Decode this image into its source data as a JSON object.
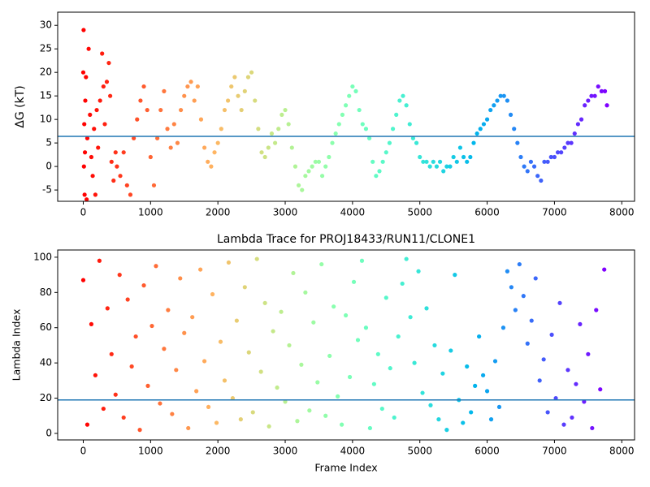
{
  "chart_data": [
    {
      "type": "scatter",
      "ylabel": "ΔG (kT)",
      "colormap": "rainbow_r",
      "hline": 6.4,
      "hline_color": "#1f77b4",
      "xlim": [
        -380,
        8190
      ],
      "ylim": [
        -7.4,
        32.8
      ],
      "xticks": [
        0,
        1000,
        2000,
        3000,
        4000,
        5000,
        6000,
        7000,
        8000
      ],
      "yticks": [
        -5,
        0,
        5,
        10,
        15,
        20,
        25,
        30
      ],
      "x": [
        0,
        5,
        10,
        15,
        20,
        25,
        30,
        40,
        50,
        60,
        80,
        100,
        120,
        140,
        160,
        180,
        200,
        220,
        250,
        280,
        300,
        320,
        350,
        380,
        400,
        420,
        450,
        480,
        500,
        550,
        600,
        650,
        700,
        750,
        800,
        850,
        900,
        950,
        1000,
        1050,
        1100,
        1150,
        1200,
        1250,
        1300,
        1350,
        1400,
        1450,
        1500,
        1550,
        1600,
        1650,
        1700,
        1750,
        1800,
        1850,
        1900,
        1950,
        2000,
        2050,
        2100,
        2150,
        2200,
        2250,
        2300,
        2350,
        2400,
        2450,
        2500,
        2550,
        2600,
        2650,
        2700,
        2750,
        2800,
        2850,
        2900,
        2950,
        3000,
        3050,
        3100,
        3150,
        3200,
        3250,
        3300,
        3350,
        3400,
        3450,
        3500,
        3550,
        3600,
        3650,
        3700,
        3750,
        3800,
        3850,
        3900,
        3950,
        4000,
        4050,
        4100,
        4150,
        4200,
        4250,
        4300,
        4350,
        4400,
        4450,
        4500,
        4550,
        4600,
        4650,
        4700,
        4750,
        4800,
        4850,
        4900,
        4950,
        5000,
        5050,
        5100,
        5150,
        5200,
        5250,
        5300,
        5350,
        5400,
        5450,
        5500,
        5550,
        5600,
        5650,
        5700,
        5750,
        5800,
        5850,
        5900,
        5950,
        6000,
        6050,
        6100,
        6150,
        6200,
        6250,
        6300,
        6350,
        6400,
        6450,
        6500,
        6550,
        6600,
        6650,
        6700,
        6750,
        6800,
        6850,
        6900,
        6950,
        7000,
        7050,
        7100,
        7150,
        7200,
        7250,
        7300,
        7350,
        7400,
        7450,
        7500,
        7550,
        7600,
        7650,
        7700,
        7750,
        7780
      ],
      "values": [
        20,
        29,
        0,
        9,
        -6,
        3,
        14,
        19,
        -7,
        6,
        25,
        11,
        2,
        -2,
        8,
        -6,
        12,
        4,
        14,
        24,
        17,
        9,
        18,
        22,
        15,
        1,
        -3,
        3,
        0,
        -2,
        3,
        -4,
        -6,
        6,
        10,
        14,
        17,
        12,
        2,
        -4,
        6,
        12,
        16,
        8,
        4,
        9,
        5,
        12,
        15,
        17,
        18,
        14,
        17,
        10,
        4,
        1,
        0,
        3,
        5,
        8,
        12,
        14,
        17,
        19,
        15,
        12,
        16,
        19,
        20,
        14,
        8,
        3,
        2,
        4,
        7,
        5,
        8,
        11,
        12,
        9,
        4,
        0,
        -4,
        -5,
        -2,
        -1,
        0,
        1,
        1,
        -2,
        0,
        2,
        5,
        7,
        9,
        11,
        13,
        15,
        17,
        16,
        12,
        9,
        8,
        6,
        1,
        -2,
        -1,
        1,
        3,
        5,
        8,
        11,
        14,
        15,
        13,
        9,
        6,
        5,
        2,
        1,
        1,
        0,
        1,
        0,
        1,
        -1,
        0,
        0,
        2,
        1,
        4,
        2,
        1,
        2,
        5,
        7,
        8,
        9,
        10,
        12,
        13,
        14,
        15,
        15,
        14,
        11,
        8,
        5,
        2,
        0,
        -1,
        1,
        0,
        -2,
        -3,
        1,
        1,
        2,
        2,
        3,
        3,
        4,
        5,
        5,
        7,
        9,
        10,
        13,
        14,
        15,
        15,
        17,
        16,
        16,
        13
      ]
    },
    {
      "type": "scatter",
      "title": "Lambda Trace for PROJ18433/RUN11/CLONE1",
      "xlabel": "Frame Index",
      "ylabel": "Lambda Index",
      "colormap": "rainbow_r",
      "hline": 19,
      "hline_color": "#1f77b4",
      "xlim": [
        -380,
        8190
      ],
      "ylim": [
        -3.7,
        104.1
      ],
      "xticks": [
        0,
        1000,
        2000,
        3000,
        4000,
        5000,
        6000,
        7000,
        8000
      ],
      "yticks": [
        0,
        20,
        40,
        60,
        80,
        100
      ],
      "x": [
        0,
        60,
        120,
        180,
        240,
        300,
        360,
        420,
        480,
        540,
        600,
        660,
        720,
        780,
        840,
        900,
        960,
        1020,
        1080,
        1140,
        1200,
        1260,
        1320,
        1380,
        1440,
        1500,
        1560,
        1620,
        1680,
        1740,
        1800,
        1860,
        1920,
        1980,
        2040,
        2100,
        2160,
        2220,
        2280,
        2340,
        2400,
        2460,
        2520,
        2580,
        2640,
        2700,
        2760,
        2820,
        2880,
        2940,
        3000,
        3060,
        3120,
        3180,
        3240,
        3300,
        3360,
        3420,
        3480,
        3540,
        3600,
        3660,
        3720,
        3780,
        3840,
        3900,
        3960,
        4020,
        4080,
        4140,
        4200,
        4260,
        4320,
        4380,
        4440,
        4500,
        4560,
        4620,
        4680,
        4740,
        4800,
        4860,
        4920,
        4980,
        5040,
        5100,
        5160,
        5220,
        5280,
        5340,
        5400,
        5460,
        5520,
        5580,
        5640,
        5700,
        5760,
        5820,
        5880,
        5940,
        6000,
        6060,
        6120,
        6180,
        6240,
        6300,
        6360,
        6420,
        6480,
        6540,
        6600,
        6660,
        6720,
        6780,
        6840,
        6900,
        6960,
        7020,
        7080,
        7140,
        7200,
        7260,
        7320,
        7380,
        7440,
        7500,
        7560,
        7620,
        7680,
        7740
      ],
      "values": [
        87,
        5,
        62,
        33,
        98,
        14,
        71,
        45,
        22,
        90,
        9,
        76,
        38,
        55,
        2,
        84,
        27,
        61,
        95,
        17,
        48,
        70,
        11,
        36,
        88,
        57,
        3,
        66,
        24,
        93,
        41,
        15,
        79,
        6,
        52,
        30,
        97,
        20,
        64,
        8,
        83,
        46,
        12,
        99,
        35,
        74,
        4,
        58,
        26,
        69,
        18,
        50,
        91,
        7,
        39,
        80,
        13,
        63,
        29,
        96,
        10,
        44,
        72,
        21,
        5,
        67,
        32,
        86,
        53,
        98,
        60,
        3,
        28,
        45,
        14,
        77,
        37,
        9,
        55,
        85,
        99,
        66,
        40,
        92,
        23,
        71,
        16,
        50,
        8,
        34,
        2,
        47,
        90,
        19,
        6,
        38,
        12,
        27,
        55,
        33,
        24,
        8,
        41,
        15,
        60,
        92,
        83,
        70,
        96,
        78,
        51,
        64,
        88,
        30,
        42,
        12,
        56,
        20,
        74,
        5,
        36,
        9,
        28,
        62,
        18,
        45,
        3,
        70,
        25,
        93
      ]
    }
  ]
}
